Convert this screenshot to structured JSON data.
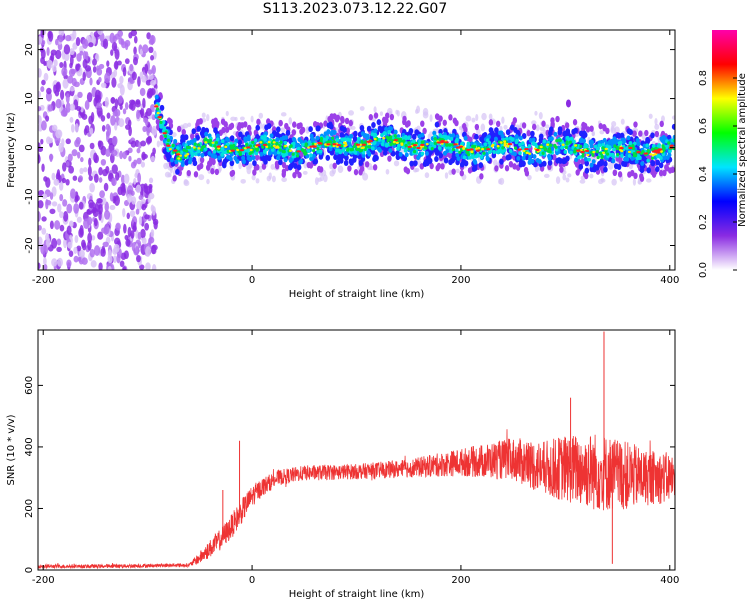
{
  "title": "S113.2023.073.12.22.G07",
  "chart_data": [
    {
      "type": "heatmap",
      "xlabel": "Height of straight line (km)",
      "ylabel": "Frequency (Hz)",
      "xlim": [
        -205,
        405
      ],
      "ylim": [
        -25,
        24
      ],
      "x_ticks": [
        "-200",
        "0",
        "200",
        "400"
      ],
      "y_ticks": [
        "-20",
        "-10",
        "0",
        "10",
        "20"
      ],
      "colorbar": {
        "label": "Normalized spectral amplitude",
        "range": [
          0,
          1
        ],
        "ticks": [
          "0.0",
          "0.2",
          "0.4",
          "0.6",
          "0.8"
        ],
        "colors": [
          "#ffffff",
          "#8a2be2",
          "#0000ff",
          "#00e5ff",
          "#00ff00",
          "#ffff00",
          "#ff0000",
          "#ff00aa"
        ]
      },
      "noise_region_x": [
        -205,
        -92
      ],
      "signal_track": {
        "x": [
          -92,
          -85,
          -80,
          -70,
          -50,
          -20,
          0,
          30,
          60,
          100,
          150,
          200,
          250,
          300,
          350,
          405
        ],
        "y": [
          8,
          4,
          1,
          -1,
          0,
          0,
          0,
          0,
          0,
          1,
          1,
          0,
          0,
          0,
          -1,
          0
        ]
      }
    },
    {
      "type": "line",
      "xlabel": "Height of straight line (km)",
      "ylabel": "SNR (10 * v/v)",
      "xlim": [
        -205,
        405
      ],
      "ylim": [
        0,
        780
      ],
      "x_ticks": [
        "-200",
        "0",
        "200",
        "400"
      ],
      "y_ticks": [
        "0",
        "200",
        "400",
        "600"
      ],
      "color": "#ee3333",
      "envelope": {
        "x": [
          -205,
          -150,
          -100,
          -60,
          -50,
          -40,
          -30,
          -20,
          -10,
          0,
          10,
          25,
          50,
          100,
          150,
          200,
          250,
          280,
          300,
          330,
          350,
          380,
          405
        ],
        "y": [
          12,
          12,
          14,
          16,
          40,
          70,
          100,
          140,
          190,
          240,
          270,
          300,
          315,
          320,
          330,
          350,
          360,
          330,
          330,
          320,
          310,
          300,
          300
        ],
        "amp": [
          6,
          6,
          6,
          6,
          20,
          30,
          35,
          40,
          40,
          35,
          30,
          25,
          25,
          25,
          30,
          45,
          70,
          90,
          110,
          130,
          120,
          90,
          80
        ]
      },
      "spikes": [
        {
          "x": -12,
          "y": 420
        },
        {
          "x": -28,
          "y": 260
        },
        {
          "x": 337,
          "y": 775
        },
        {
          "x": 305,
          "y": 560
        },
        {
          "x": 345,
          "y": 20
        }
      ]
    }
  ]
}
